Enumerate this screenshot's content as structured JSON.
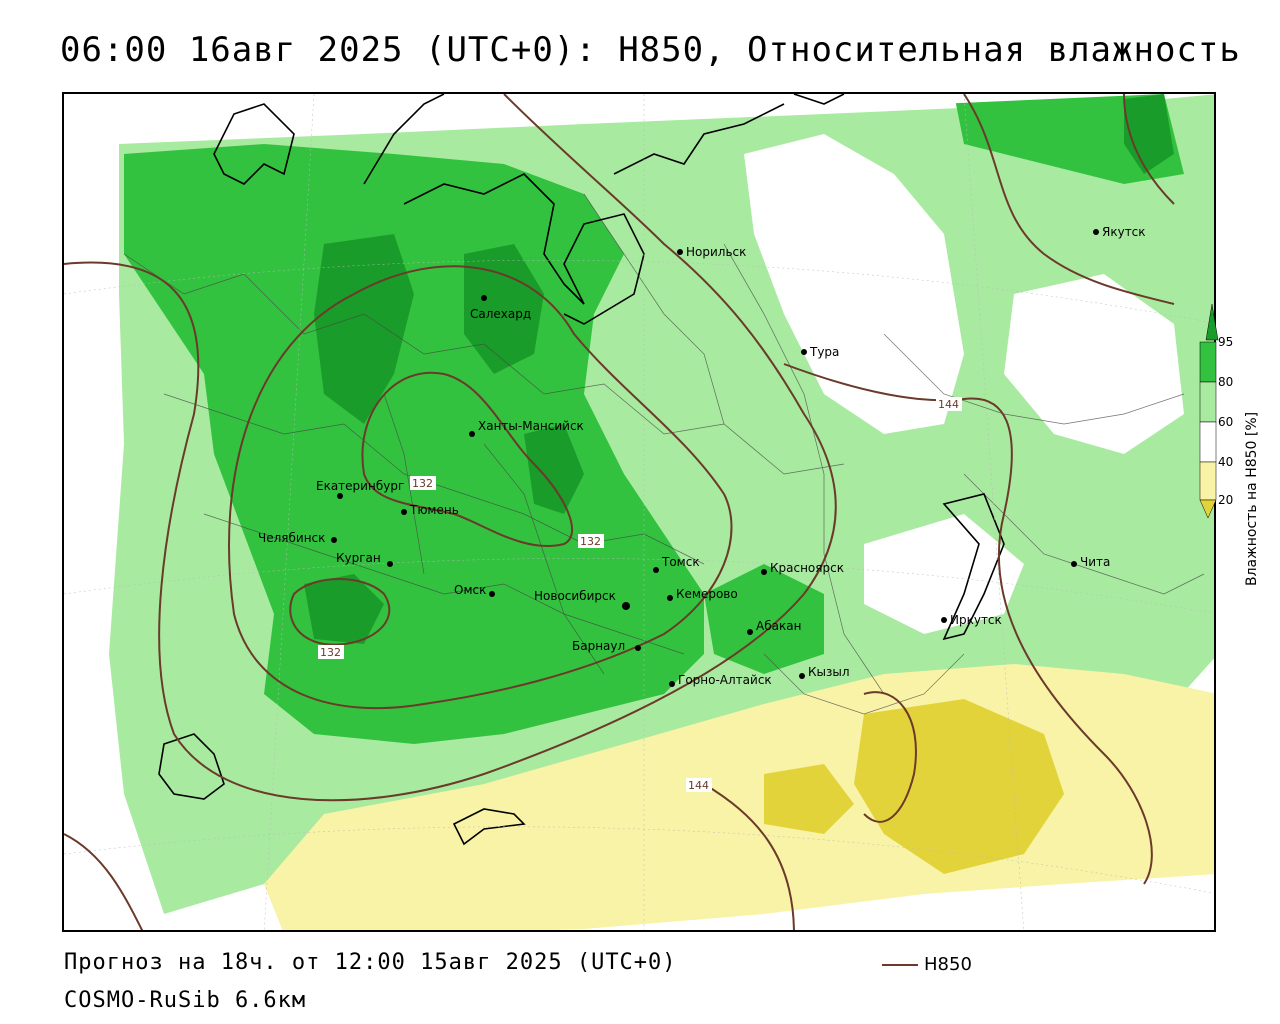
{
  "title": "06:00 16авг 2025 (UTC+0): H850, Относительная влажность",
  "forecast_line": "Прогноз на 18ч. от 12:00 15авг 2025 (UTC+0)",
  "model_line": "COSMO-RuSib 6.6км",
  "contour_key": {
    "label": "H850",
    "color": "#6b3a2a"
  },
  "legend": {
    "title": "Влажность на H850 [%]",
    "ticks": [
      "95",
      "80",
      "60",
      "40",
      "20"
    ],
    "colors": {
      "gt95": "#1a9c2a",
      "80_95": "#33c23f",
      "60_80": "#a8eaa0",
      "40_60": "#ffffff",
      "20_40": "#f8f3a6",
      "lt20": "#e3d33b"
    }
  },
  "contour_labels": [
    "132",
    "132",
    "132",
    "144",
    "144"
  ],
  "cities": [
    {
      "name": "Норильск"
    },
    {
      "name": "Якутск"
    },
    {
      "name": "Салехард"
    },
    {
      "name": "Тура"
    },
    {
      "name": "Ханты-Мансийск"
    },
    {
      "name": "Екатеринбург"
    },
    {
      "name": "Тюмень"
    },
    {
      "name": "Челябинск"
    },
    {
      "name": "Курган"
    },
    {
      "name": "Омск"
    },
    {
      "name": "Новосибирск"
    },
    {
      "name": "Томск"
    },
    {
      "name": "Кемерово"
    },
    {
      "name": "Красноярск"
    },
    {
      "name": "Абакан"
    },
    {
      "name": "Барнаул"
    },
    {
      "name": "Горно-Алтайск"
    },
    {
      "name": "Кызыл"
    },
    {
      "name": "Иркутск"
    },
    {
      "name": "Чита"
    }
  ]
}
